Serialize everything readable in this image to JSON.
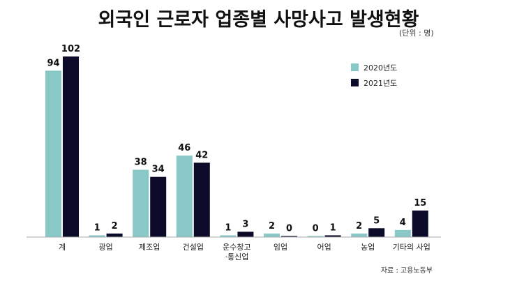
{
  "header": {
    "title": "외국인 근로자 업종별 사망사고 발생현황",
    "unit": "(단위 : 명)"
  },
  "footer": {
    "source": "자료 : 고용노동부"
  },
  "colors": {
    "series_2020": "#88c8c6",
    "series_2021": "#0c0c2a",
    "axis": "#aaaaaa",
    "label": "#111111"
  },
  "chart_data": {
    "type": "bar",
    "title": "외국인 근로자 업종별 사망사고 발생현황",
    "unit": "(단위 : 명)",
    "categories": [
      "계",
      "광업",
      "제조업",
      "건설업",
      "운수창고·통신업",
      "임업",
      "어업",
      "농업",
      "기타의 사업"
    ],
    "category_lines": [
      [
        "계"
      ],
      [
        "광업"
      ],
      [
        "제조업"
      ],
      [
        "건설업"
      ],
      [
        "운수창고",
        "·통신업"
      ],
      [
        "임업"
      ],
      [
        "어업"
      ],
      [
        "농업"
      ],
      [
        "기타의 사업"
      ]
    ],
    "series": [
      {
        "name": "2020년도",
        "values": [
          94,
          1,
          38,
          46,
          1,
          2,
          0,
          2,
          4
        ]
      },
      {
        "name": "2021년도",
        "values": [
          102,
          2,
          34,
          42,
          3,
          0,
          1,
          5,
          15
        ]
      }
    ],
    "ylim": [
      0,
      102
    ],
    "grid": false,
    "legend_position": "top-right",
    "data_labels": true,
    "source": "자료 : 고용노동부"
  }
}
